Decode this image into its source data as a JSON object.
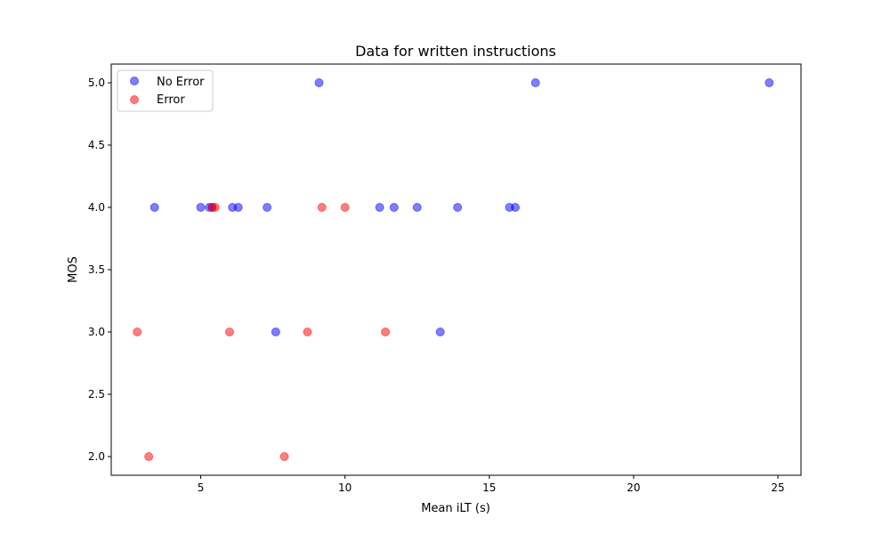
{
  "chart_data": {
    "type": "scatter",
    "title": "Data for written instructions",
    "xlabel": "Mean iLT (s)",
    "ylabel": "MOS",
    "xlim": [
      1.9,
      25.8
    ],
    "ylim": [
      1.85,
      5.15
    ],
    "xticks": [
      5,
      10,
      15,
      20,
      25
    ],
    "yticks": [
      2.0,
      2.5,
      3.0,
      3.5,
      4.0,
      4.5,
      5.0
    ],
    "xtick_labels": [
      "5",
      "10",
      "15",
      "20",
      "25"
    ],
    "ytick_labels": [
      "2.0",
      "2.5",
      "3.0",
      "3.5",
      "4.0",
      "4.5",
      "5.0"
    ],
    "grid": false,
    "legend_position": "top-left",
    "series": [
      {
        "name": "No Error",
        "color": "#0000ff",
        "alpha": 0.5,
        "points": [
          {
            "x": 9.1,
            "y": 5.0
          },
          {
            "x": 16.6,
            "y": 5.0
          },
          {
            "x": 24.7,
            "y": 5.0
          },
          {
            "x": 3.4,
            "y": 4.0
          },
          {
            "x": 5.0,
            "y": 4.0
          },
          {
            "x": 5.3,
            "y": 4.0
          },
          {
            "x": 5.4,
            "y": 4.0
          },
          {
            "x": 6.1,
            "y": 4.0
          },
          {
            "x": 6.3,
            "y": 4.0
          },
          {
            "x": 7.3,
            "y": 4.0
          },
          {
            "x": 11.2,
            "y": 4.0
          },
          {
            "x": 11.7,
            "y": 4.0
          },
          {
            "x": 12.5,
            "y": 4.0
          },
          {
            "x": 13.9,
            "y": 4.0
          },
          {
            "x": 15.7,
            "y": 4.0
          },
          {
            "x": 15.9,
            "y": 4.0
          },
          {
            "x": 7.6,
            "y": 3.0
          },
          {
            "x": 13.3,
            "y": 3.0
          }
        ]
      },
      {
        "name": "Error",
        "color": "#ff0000",
        "alpha": 0.5,
        "points": [
          {
            "x": 5.4,
            "y": 4.0
          },
          {
            "x": 5.5,
            "y": 4.0
          },
          {
            "x": 9.2,
            "y": 4.0
          },
          {
            "x": 10.0,
            "y": 4.0
          },
          {
            "x": 2.8,
            "y": 3.0
          },
          {
            "x": 6.0,
            "y": 3.0
          },
          {
            "x": 8.7,
            "y": 3.0
          },
          {
            "x": 11.4,
            "y": 3.0
          },
          {
            "x": 3.2,
            "y": 2.0
          },
          {
            "x": 7.9,
            "y": 2.0
          }
        ]
      }
    ]
  }
}
